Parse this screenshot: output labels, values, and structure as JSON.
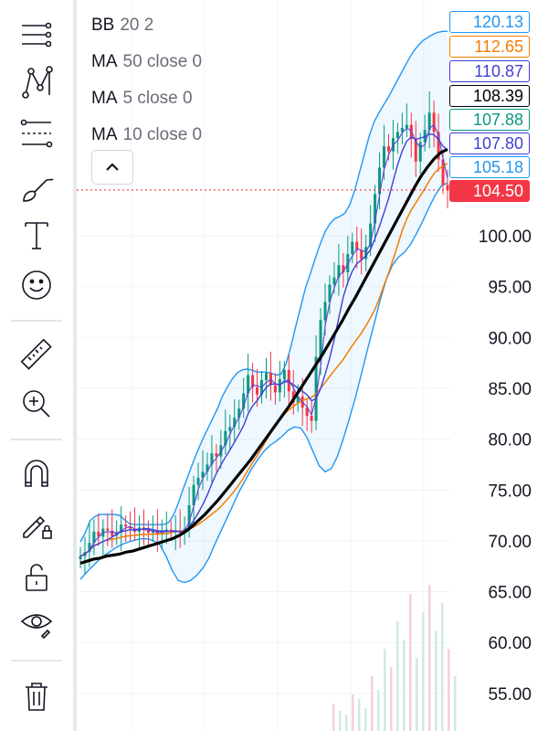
{
  "toolbar": {
    "tools": [
      {
        "name": "lines-icon"
      },
      {
        "name": "pattern-icon"
      },
      {
        "name": "fib-retracement-icon"
      },
      {
        "name": "brush-icon"
      },
      {
        "name": "text-icon"
      },
      {
        "name": "emoji-icon"
      },
      {
        "name": "ruler-icon"
      },
      {
        "name": "zoom-in-icon"
      },
      {
        "name": "magnet-icon"
      },
      {
        "name": "lock-drawing-icon"
      },
      {
        "name": "unlock-icon"
      },
      {
        "name": "eye-icon"
      },
      {
        "name": "trash-icon"
      }
    ]
  },
  "indicators": [
    {
      "name": "BB",
      "params": "20 2"
    },
    {
      "name": "MA",
      "params": "50 close 0"
    },
    {
      "name": "MA",
      "params": "5 close 0"
    },
    {
      "name": "MA",
      "params": "10 close 0"
    }
  ],
  "collapse_icon": "chevron-up-icon",
  "price_labels": [
    {
      "value": "120.13",
      "color": "#2196f3"
    },
    {
      "value": "112.65",
      "color": "#f57c00"
    },
    {
      "value": "110.87",
      "color": "#3f3fd6"
    },
    {
      "value": "108.39",
      "color": "#000000"
    },
    {
      "value": "107.88",
      "color": "#089981"
    },
    {
      "value": "107.80",
      "color": "#3f3fd6"
    },
    {
      "value": "105.18",
      "color": "#2196f3"
    },
    {
      "value": "104.50",
      "color": "#f23645"
    }
  ],
  "chart_data": {
    "type": "line",
    "series_names": [
      "BB 20 2",
      "MA 50 close 0",
      "MA 5 close 0",
      "MA 10 close 0"
    ],
    "y_axis_ticks": [
      "100.00",
      "95.00",
      "90.00",
      "85.00",
      "80.00",
      "75.00",
      "70.00",
      "65.00",
      "60.00",
      "55.00"
    ],
    "ylim": [
      52.8,
      121.0
    ],
    "last_price": 104.5,
    "grid": true,
    "close": [
      68.5,
      68.9,
      69.8,
      70.9,
      70.4,
      71.2,
      71.0,
      70.5,
      70.8,
      71.6,
      71.4,
      71.2,
      70.9,
      71.3,
      71.1,
      70.8,
      71.0,
      70.7,
      70.9,
      71.1,
      70.9,
      71.0,
      70.8,
      71.2,
      73.5,
      75.5,
      76.2,
      76.8,
      77.5,
      78.6,
      78.3,
      79.4,
      80.8,
      81.2,
      82.1,
      83.0,
      84.5,
      86.3,
      85.1,
      84.4,
      85.8,
      86.5,
      85.3,
      84.6,
      85.9,
      86.8,
      84.7,
      83.6,
      84.2,
      83.1,
      82.3,
      81.8,
      88.1,
      91.7,
      93.5,
      95.2,
      95.9,
      97.1,
      96.4,
      98.2,
      99.4,
      98.6,
      97.7,
      98.9,
      101.2,
      104.1,
      106.7,
      108.8,
      108.3,
      109.6,
      110.2,
      110.6,
      110.9,
      109.5,
      107.3,
      109.2,
      110.4,
      112.1,
      110.2,
      107.5,
      105.0,
      104.5
    ],
    "bb_upper": [
      69.9,
      70.8,
      72.0,
      72.4,
      72.6,
      72.6,
      72.6,
      72.6,
      72.5,
      72.1,
      71.7,
      71.6,
      71.6,
      71.6,
      71.6,
      71.6,
      71.6,
      71.6,
      71.8,
      72.5,
      73.7,
      75.1,
      76.4,
      77.7,
      78.9,
      80.0,
      81.0,
      82.0,
      83.0,
      84.2,
      85.1,
      85.9,
      86.5,
      86.8,
      86.9,
      86.8,
      86.6,
      86.6,
      86.6,
      86.5,
      86.3,
      86.4,
      87.4,
      89.1,
      91.1,
      93.0,
      94.9,
      96.3,
      97.8,
      99.2,
      100.4,
      101.2,
      101.7,
      101.9,
      102.2,
      103.0,
      104.4,
      106.2,
      108.0,
      109.8,
      111.2,
      112.1,
      112.9,
      113.7,
      114.6,
      115.5,
      116.4,
      117.3,
      118.1,
      118.7,
      119.2,
      119.5,
      119.8,
      120.0,
      120.1,
      120.1
    ],
    "bb_lower": [
      66.2,
      66.9,
      67.5,
      68.1,
      68.6,
      69.0,
      69.4,
      69.7,
      69.9,
      70.1,
      70.2,
      70.2,
      70.0,
      69.6,
      68.5,
      67.1,
      66.1,
      65.9,
      66.1,
      66.6,
      67.3,
      68.3,
      69.7,
      71.0,
      72.3,
      73.6,
      74.9,
      76.0,
      77.1,
      78.0,
      78.8,
      79.4,
      79.8,
      80.3,
      80.9,
      81.2,
      81.1,
      80.2,
      78.8,
      77.4,
      76.8,
      77.1,
      78.3,
      80.1,
      82.1,
      84.2,
      86.6,
      89.0,
      91.3,
      93.7,
      95.7,
      97.1,
      97.9,
      98.4,
      99.2,
      100.3,
      101.5,
      102.8,
      104.0,
      104.9,
      105.2
    ],
    "ma50": [
      67.8,
      68.0,
      68.2,
      68.3,
      68.5,
      68.6,
      68.7,
      68.9,
      69.0,
      69.2,
      69.4,
      69.6,
      69.8,
      70.0,
      70.2,
      70.5,
      70.9,
      71.4,
      72.0,
      72.6,
      73.3,
      74.0,
      74.8,
      75.6,
      76.4,
      77.2,
      78.0,
      78.9,
      79.8,
      80.7,
      81.6,
      82.5,
      83.4,
      84.4,
      85.4,
      86.4,
      87.4,
      88.4,
      89.5,
      90.6,
      91.7,
      92.9,
      94.0,
      95.2,
      96.4,
      97.6,
      98.8,
      100.0,
      101.2,
      102.4,
      103.6,
      104.8,
      105.9,
      106.8,
      107.6,
      108.2,
      108.5
    ]
  }
}
